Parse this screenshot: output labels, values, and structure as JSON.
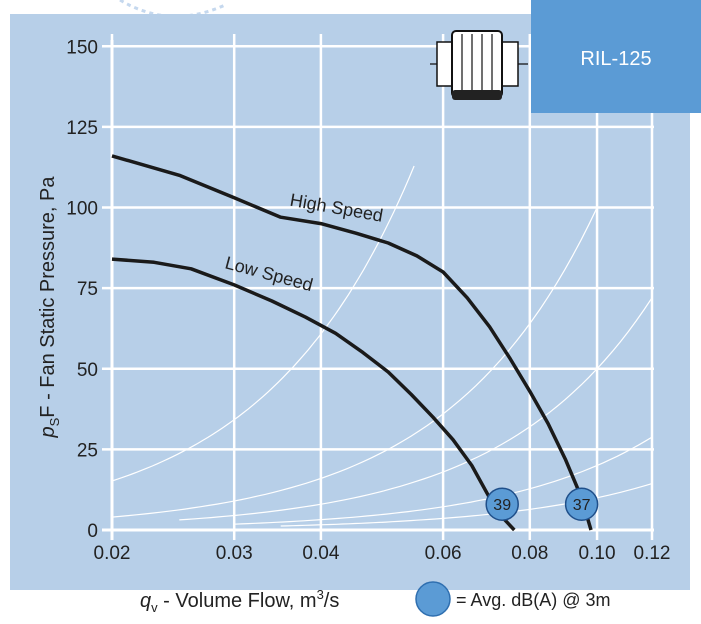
{
  "colors": {
    "panel_bg": "#b7cfe8",
    "grid": "#ffffff",
    "curve": "#1a1a1a",
    "badge_fill": "#5b9bd5",
    "model_box": "#5b9bd5"
  },
  "model_label": "RIL-125",
  "icon": "duct-fan-icon",
  "chart_data": {
    "type": "line",
    "xlabel_prefix": "q",
    "xlabel_sub": "v",
    "xlabel_rest": " - Volume Flow, m",
    "xlabel_sup": "3",
    "xlabel_suffix": "/s",
    "ylabel_prefix": "p",
    "ylabel_sub": "S",
    "ylabel_rest": "F - Fan Static Pressure, Pa",
    "x_scale": "log",
    "xlim": [
      0.02,
      0.12
    ],
    "ylim": [
      0,
      160
    ],
    "x_ticks": [
      {
        "value": 0.02,
        "label": "0.02"
      },
      {
        "value": 0.03,
        "label": "0.03"
      },
      {
        "value": 0.04,
        "label": "0.04"
      },
      {
        "value": 0.06,
        "label": "0.06"
      },
      {
        "value": 0.08,
        "label": "0.08"
      },
      {
        "value": 0.1,
        "label": "0.10"
      },
      {
        "value": 0.12,
        "label": "0.12"
      }
    ],
    "y_ticks": [
      {
        "value": 0,
        "label": "0"
      },
      {
        "value": 25,
        "label": "25"
      },
      {
        "value": 50,
        "label": "50"
      },
      {
        "value": 75,
        "label": "75"
      },
      {
        "value": 100,
        "label": "100"
      },
      {
        "value": 125,
        "label": "125"
      },
      {
        "value": 150,
        "label": "150"
      }
    ],
    "grid": true,
    "series": [
      {
        "name": "High Speed",
        "x": [
          0.02,
          0.025,
          0.03,
          0.035,
          0.04,
          0.045,
          0.05,
          0.055,
          0.06,
          0.065,
          0.07,
          0.075,
          0.08,
          0.085,
          0.09,
          0.095,
          0.098
        ],
        "y": [
          116,
          110,
          103,
          97,
          95,
          92,
          89,
          85,
          80,
          72,
          63,
          53,
          43,
          33,
          22,
          10,
          0
        ],
        "dba": "37",
        "dba_x": 0.095,
        "dba_y": 8
      },
      {
        "name": "Low Speed",
        "x": [
          0.02,
          0.023,
          0.026,
          0.03,
          0.034,
          0.038,
          0.042,
          0.046,
          0.05,
          0.054,
          0.058,
          0.062,
          0.066,
          0.07,
          0.073,
          0.076
        ],
        "y": [
          84,
          83,
          81,
          76,
          71,
          66,
          61,
          55,
          49,
          42,
          35,
          28,
          20,
          10,
          4,
          0
        ],
        "dba": "39",
        "dba_x": 0.073,
        "dba_y": 8
      }
    ],
    "system_curves": [
      {
        "k": 0.38,
        "x0": 0.02,
        "x1": 0.0545
      },
      {
        "k": 0.1,
        "x0": 0.02,
        "x1": 0.1
      },
      {
        "k": 0.05,
        "x0": 0.025,
        "x1": 0.12
      },
      {
        "k": 0.02,
        "x0": 0.03,
        "x1": 0.12
      },
      {
        "k": 0.01,
        "x0": 0.035,
        "x1": 0.12
      }
    ],
    "legend_text": "= Avg. dB(A) @ 3m"
  }
}
